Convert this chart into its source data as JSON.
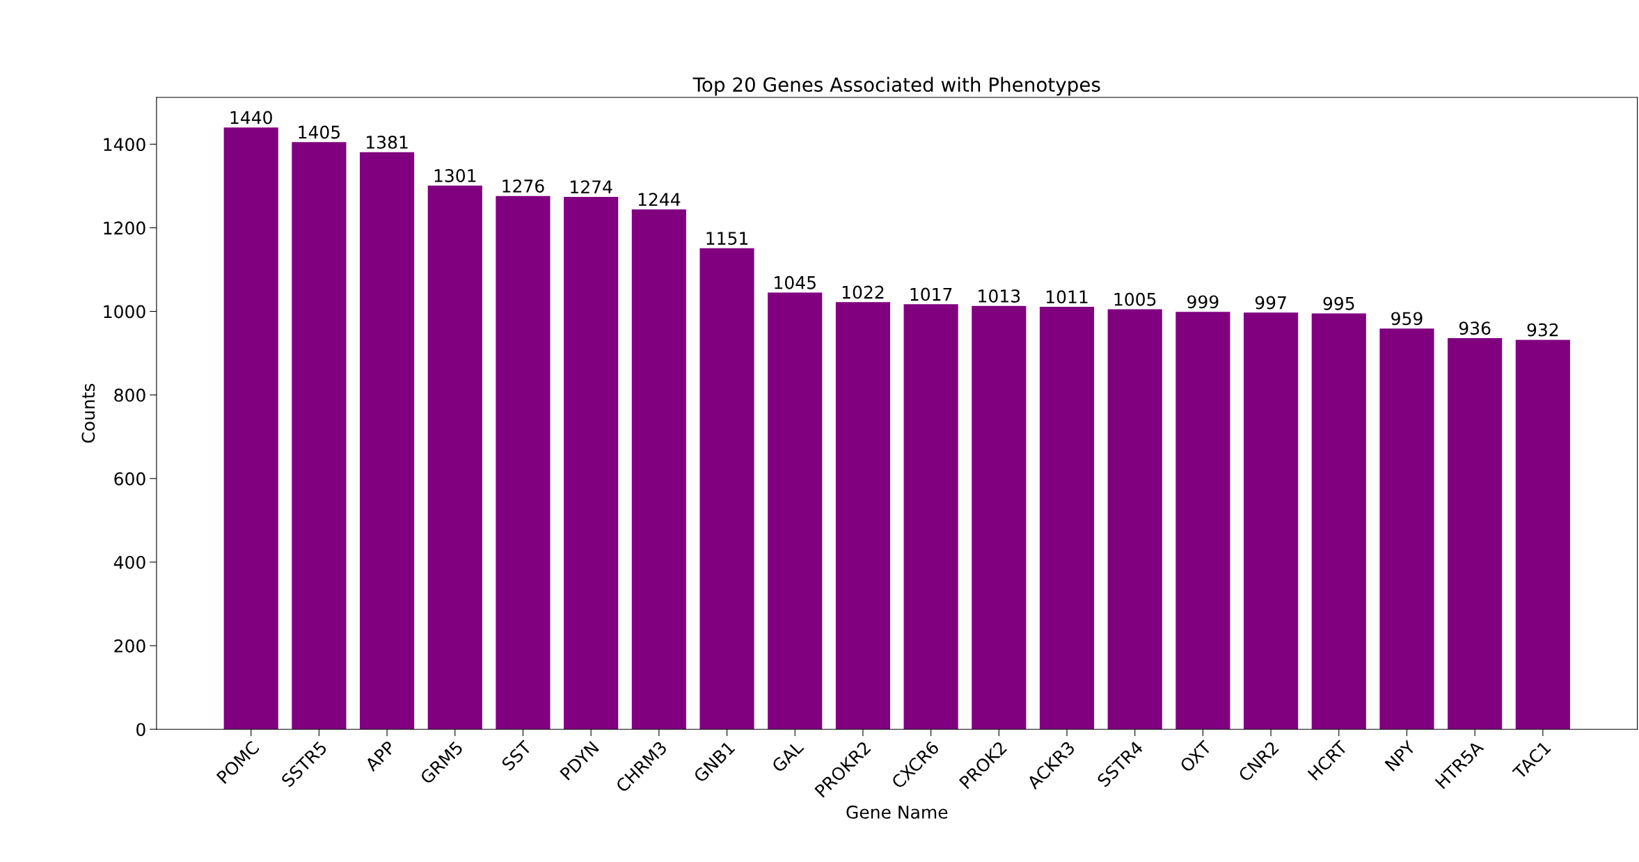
{
  "chart_data": {
    "type": "bar",
    "title": "Top 20 Genes Associated with Phenotypes",
    "xlabel": "Gene Name",
    "ylabel": "Counts",
    "categories": [
      "POMC",
      "SSTR5",
      "APP",
      "GRM5",
      "SST",
      "PDYN",
      "CHRM3",
      "GNB1",
      "GAL",
      "PROKR2",
      "CXCR6",
      "PROK2",
      "ACKR3",
      "SSTR4",
      "OXT",
      "CNR2",
      "HCRT",
      "NPY",
      "HTR5A",
      "TAC1"
    ],
    "values": [
      1440,
      1405,
      1381,
      1301,
      1276,
      1274,
      1244,
      1151,
      1045,
      1022,
      1017,
      1013,
      1011,
      1005,
      999,
      997,
      995,
      959,
      936,
      932
    ],
    "color": "#800080",
    "ylim": [
      0,
      1512
    ],
    "yticks": [
      0,
      200,
      400,
      600,
      800,
      1000,
      1200,
      1400
    ],
    "grid": false,
    "data_labels": true
  }
}
